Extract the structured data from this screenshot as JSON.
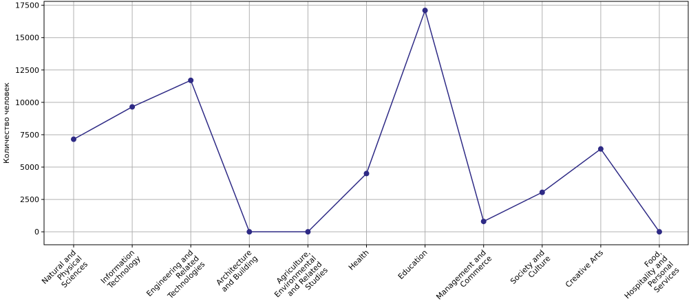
{
  "chart_data": {
    "type": "line",
    "title": "",
    "xlabel": "",
    "ylabel": "Количество человек",
    "ylim": [
      -1000,
      17800
    ],
    "yticks": [
      0,
      2500,
      5000,
      7500,
      10000,
      12500,
      15000,
      17500
    ],
    "ytick_labels": [
      "0",
      "2500",
      "5000",
      "7500",
      "10000",
      "12500",
      "15000",
      "17500"
    ],
    "grid": true,
    "categories": [
      "Natural and Physical Sciences",
      "Information Technology",
      "Engineering and Related Technologies",
      "Architecture and Building",
      "Agriculture, Environmental and Related Studies",
      "Health",
      "Education",
      "Management and Commerce",
      "Society and Culture",
      "Creative Arts",
      "Food, Hospitality and Personal Services"
    ],
    "category_lines": [
      [
        "Natural and",
        "Physical",
        "Sciences"
      ],
      [
        "Information",
        "Technology"
      ],
      [
        "Engineering and",
        "Related",
        "Technologies"
      ],
      [
        "Architecture",
        "and Building"
      ],
      [
        "Agriculture,",
        "Environmental",
        "and Related",
        "Studies"
      ],
      [
        "Health"
      ],
      [
        "Education"
      ],
      [
        "Management and",
        "Commerce"
      ],
      [
        "Society and",
        "Culture"
      ],
      [
        "Creative Arts"
      ],
      [
        "Food,",
        "Hospitality and",
        "Personal",
        "Services"
      ]
    ],
    "series": [
      {
        "values": [
          7150,
          9650,
          11700,
          0,
          0,
          4500,
          17100,
          800,
          3050,
          6400,
          0
        ]
      }
    ],
    "line_color": "#2e2a85"
  }
}
